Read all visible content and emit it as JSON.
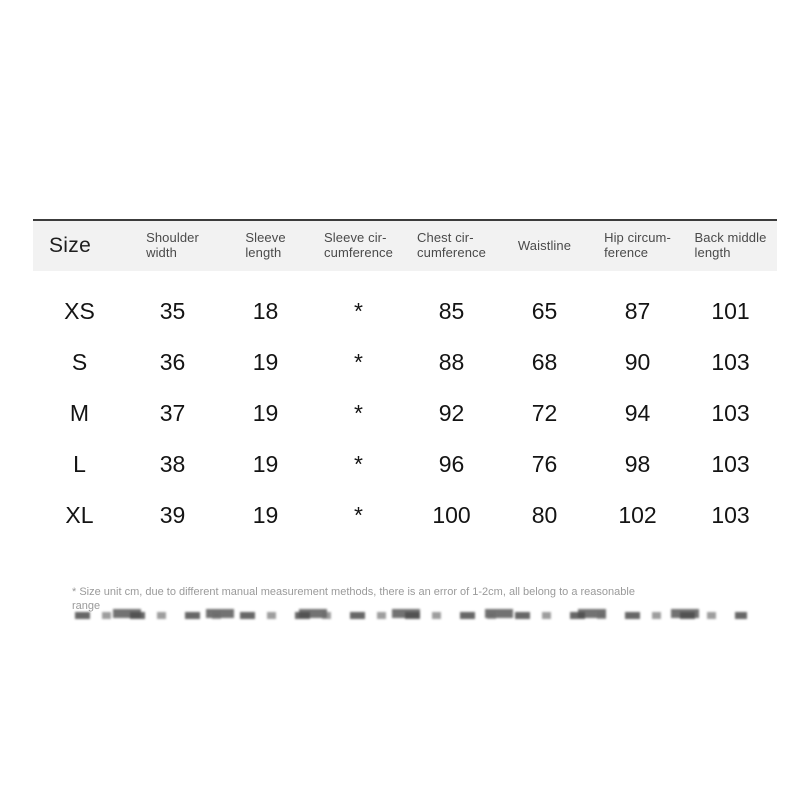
{
  "chart_data": {
    "type": "table",
    "columns": [
      "Size",
      "Shoulder\nwidth",
      "Sleeve\nlength",
      "Sleeve cir-\ncumference",
      "Chest cir-\ncumference",
      "Waistline",
      "Hip circum-\nference",
      "Back middle\nlength"
    ],
    "rows": [
      {
        "size": "XS",
        "cells": [
          "35",
          "18",
          "*",
          "85",
          "65",
          "87",
          "101"
        ]
      },
      {
        "size": "S",
        "cells": [
          "36",
          "19",
          "*",
          "88",
          "68",
          "90",
          "103"
        ]
      },
      {
        "size": "M",
        "cells": [
          "37",
          "19",
          "*",
          "92",
          "72",
          "94",
          "103"
        ]
      },
      {
        "size": "L",
        "cells": [
          "38",
          "19",
          "*",
          "96",
          "76",
          "98",
          "103"
        ]
      },
      {
        "size": "XL",
        "cells": [
          "39",
          "19",
          "*",
          "100",
          "80",
          "102",
          "103"
        ]
      }
    ]
  },
  "footnote": {
    "text": "* Size unit cm, due to different manual measurement methods, there is an error of 1-2cm, all belong to a reasonable range"
  },
  "colors": {
    "header_bg": "#f2f2f2",
    "top_border": "#3c3c3c",
    "data_text": "#141414",
    "header_text": "#4a4a4a",
    "footnote_text": "#9a9a9a"
  }
}
